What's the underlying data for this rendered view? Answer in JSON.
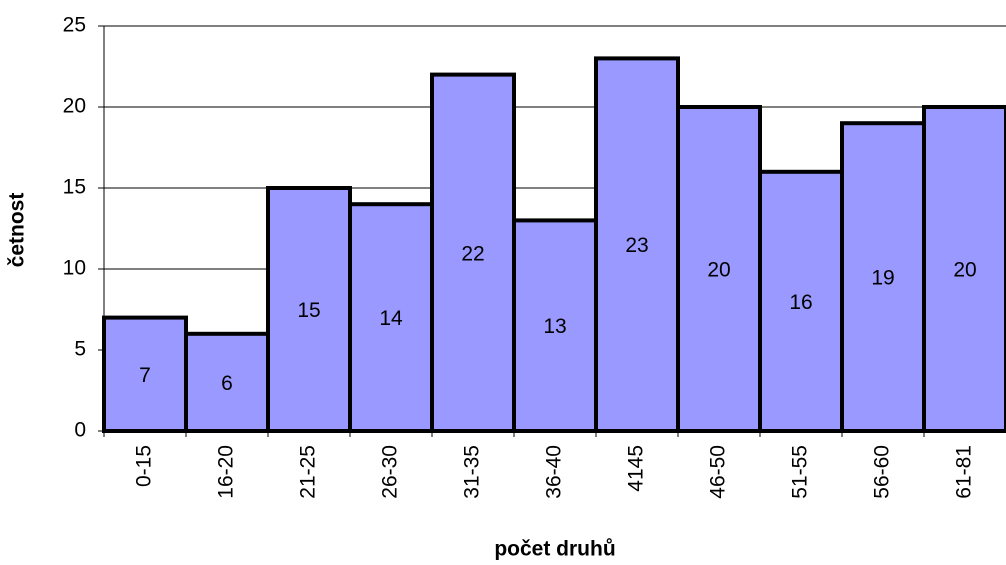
{
  "chart_data": {
    "type": "bar",
    "x_label": "počet druhů",
    "y_label": "četnost",
    "categories": [
      "0-15",
      "16-20",
      "21-25",
      "26-30",
      "31-35",
      "36-40",
      "4145",
      "46-50",
      "51-55",
      "56-60",
      "61-81"
    ],
    "values": [
      7,
      6,
      15,
      14,
      22,
      13,
      23,
      20,
      16,
      19,
      20
    ],
    "color": "#9999ff",
    "ylim": [
      0,
      25
    ],
    "yticks": [
      0,
      5,
      10,
      15,
      20,
      25
    ],
    "grid": true
  }
}
